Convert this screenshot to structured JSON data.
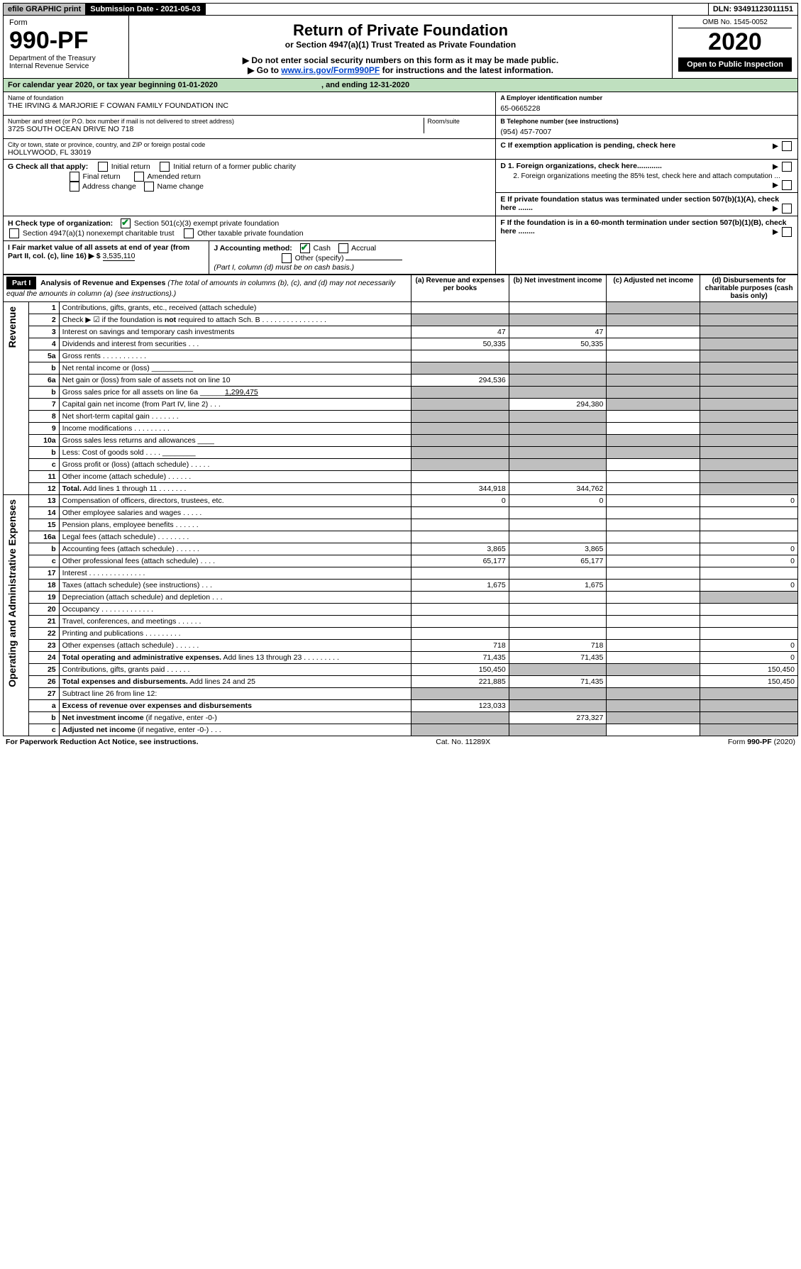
{
  "topbar": {
    "efile": "efile GRAPHIC print",
    "subdate_lbl": "Submission Date - 2021-05-03",
    "dln": "DLN: 93491123011151"
  },
  "header": {
    "form": "Form",
    "formnum": "990-PF",
    "dept": "Department of the Treasury",
    "irs": "Internal Revenue Service",
    "title": "Return of Private Foundation",
    "sub": "or Section 4947(a)(1) Trust Treated as Private Foundation",
    "note1": "▶ Do not enter social security numbers on this form as it may be made public.",
    "note2": "▶ Go to ",
    "link": "www.irs.gov/Form990PF",
    "note2b": " for instructions and the latest information.",
    "omb": "OMB No. 1545-0052",
    "year": "2020",
    "open": "Open to Public Inspection"
  },
  "cal": {
    "text": "For calendar year 2020, or tax year beginning 01-01-2020",
    "end": ", and ending 12-31-2020"
  },
  "info": {
    "name_lbl": "Name of foundation",
    "name": "THE IRVING & MARJORIE F COWAN FAMILY FOUNDATION INC",
    "addr_lbl": "Number and street (or P.O. box number if mail is not delivered to street address)",
    "addr": "3725 SOUTH OCEAN DRIVE NO 718",
    "room": "Room/suite",
    "city_lbl": "City or town, state or province, country, and ZIP or foreign postal code",
    "city": "HOLLYWOOD, FL  33019",
    "ein_lbl": "A Employer identification number",
    "ein": "65-0665228",
    "tel_lbl": "B Telephone number (see instructions)",
    "tel": "(954) 457-7007",
    "c": "C If exemption application is pending, check here",
    "d1": "D 1. Foreign organizations, check here............",
    "d2": "2. Foreign organizations meeting the 85% test, check here and attach computation ...",
    "e": "E  If private foundation status was terminated under section 507(b)(1)(A), check here .......",
    "f": "F  If the foundation is in a 60-month termination under section 507(b)(1)(B), check here ........",
    "g": "G Check all that apply:",
    "g1": "Initial return",
    "g2": "Initial return of a former public charity",
    "g3": "Final return",
    "g4": "Amended return",
    "g5": "Address change",
    "g6": "Name change",
    "h": "H Check type of organization:",
    "h1": "Section 501(c)(3) exempt private foundation",
    "h2": "Section 4947(a)(1) nonexempt charitable trust",
    "h3": "Other taxable private foundation",
    "i": "I Fair market value of all assets at end of year (from Part II, col. (c), line 16) ▶ $",
    "ival": "3,535,110",
    "j": "J Accounting method:",
    "j1": "Cash",
    "j2": "Accrual",
    "j3": "Other (specify)",
    "jnote": "(Part I, column (d) must be on cash basis.)"
  },
  "p1": {
    "title": "Part I",
    "heading": "Analysis of Revenue and Expenses",
    "note": " (The total of amounts in columns (b), (c), and (d) may not necessarily equal the amounts in column (a) (see instructions).)",
    "colA": "(a)   Revenue and expenses per books",
    "colB": "(b)  Net investment income",
    "colC": "(c)  Adjusted net income",
    "colD": "(d)  Disbursements for charitable purposes (cash basis only)",
    "rev": "Revenue",
    "exp": "Operating and Administrative Expenses"
  },
  "rows": [
    {
      "n": "1",
      "d": "Contributions, gifts, grants, etc., received (attach schedule)",
      "a": "",
      "b": "",
      "c": "s",
      "dd": "s"
    },
    {
      "n": "2",
      "d": "Check ▶ ☑ if the foundation is <b>not</b> required to attach Sch. B   .   .   .   .   .   .   .   .   .   .   .   .   .   .   .   .",
      "a": "s",
      "b": "s",
      "c": "s",
      "dd": "s"
    },
    {
      "n": "3",
      "d": "Interest on savings and temporary cash investments",
      "a": "47",
      "b": "47",
      "c": "",
      "dd": "s"
    },
    {
      "n": "4",
      "d": "Dividends and interest from securities   .   .   .",
      "a": "50,335",
      "b": "50,335",
      "c": "",
      "dd": "s"
    },
    {
      "n": "5a",
      "d": "Gross rents   .   .   .   .   .   .   .   .   .   .   .",
      "a": "",
      "b": "",
      "c": "",
      "dd": "s"
    },
    {
      "n": "b",
      "d": "Net rental income or (loss)  __________",
      "a": "s",
      "b": "s",
      "c": "s",
      "dd": "s"
    },
    {
      "n": "6a",
      "d": "Net gain or (loss) from sale of assets not on line 10",
      "a": "294,536",
      "b": "s",
      "c": "s",
      "dd": "s"
    },
    {
      "n": "b",
      "d": "Gross sales price for all assets on line 6a ______<u>1,299,475</u>",
      "a": "s",
      "b": "s",
      "c": "s",
      "dd": "s"
    },
    {
      "n": "7",
      "d": "Capital gain net income (from Part IV, line 2)   .   .   .",
      "a": "s",
      "b": "294,380",
      "c": "s",
      "dd": "s"
    },
    {
      "n": "8",
      "d": "Net short-term capital gain   .   .   .   .   .   .   .",
      "a": "s",
      "b": "s",
      "c": "",
      "dd": "s"
    },
    {
      "n": "9",
      "d": "Income modifications   .   .   .   .   .   .   .   .   .",
      "a": "s",
      "b": "s",
      "c": "",
      "dd": "s"
    },
    {
      "n": "10a",
      "d": "Gross sales less returns and allowances  ____",
      "a": "s",
      "b": "s",
      "c": "s",
      "dd": "s"
    },
    {
      "n": "b",
      "d": "Less: Cost of goods sold   .   .   .   .  ________",
      "a": "s",
      "b": "s",
      "c": "s",
      "dd": "s"
    },
    {
      "n": "c",
      "d": "Gross profit or (loss) (attach schedule)   .   .   .   .   .",
      "a": "s",
      "b": "s",
      "c": "",
      "dd": "s"
    },
    {
      "n": "11",
      "d": "Other income (attach schedule)   .   .   .   .   .   .",
      "a": "",
      "b": "",
      "c": "",
      "dd": "s"
    },
    {
      "n": "12",
      "d": "<b>Total.</b> Add lines 1 through 11   .   .   .   .   .   .   .",
      "a": "344,918",
      "b": "344,762",
      "c": "",
      "dd": "s"
    }
  ],
  "erows": [
    {
      "n": "13",
      "d": "Compensation of officers, directors, trustees, etc.",
      "a": "0",
      "b": "0",
      "c": "",
      "dd": "0"
    },
    {
      "n": "14",
      "d": "Other employee salaries and wages   .   .   .   .   .",
      "a": "",
      "b": "",
      "c": "",
      "dd": ""
    },
    {
      "n": "15",
      "d": "Pension plans, employee benefits   .   .   .   .   .   .",
      "a": "",
      "b": "",
      "c": "",
      "dd": ""
    },
    {
      "n": "16a",
      "d": "Legal fees (attach schedule)   .   .   .   .   .   .   .   .",
      "a": "",
      "b": "",
      "c": "",
      "dd": ""
    },
    {
      "n": "b",
      "d": "Accounting fees (attach schedule)   .   .   .   .   .   .",
      "a": "3,865",
      "b": "3,865",
      "c": "",
      "dd": "0"
    },
    {
      "n": "c",
      "d": "Other professional fees (attach schedule)   .   .   .   .",
      "a": "65,177",
      "b": "65,177",
      "c": "",
      "dd": "0"
    },
    {
      "n": "17",
      "d": "Interest   .   .   .   .   .   .   .   .   .   .   .   .   .   .",
      "a": "",
      "b": "",
      "c": "",
      "dd": ""
    },
    {
      "n": "18",
      "d": "Taxes (attach schedule) (see instructions)   .   .   .",
      "a": "1,675",
      "b": "1,675",
      "c": "",
      "dd": "0"
    },
    {
      "n": "19",
      "d": "Depreciation (attach schedule) and depletion   .   .   .",
      "a": "",
      "b": "",
      "c": "",
      "dd": "s"
    },
    {
      "n": "20",
      "d": "Occupancy   .   .   .   .   .   .   .   .   .   .   .   .   .",
      "a": "",
      "b": "",
      "c": "",
      "dd": ""
    },
    {
      "n": "21",
      "d": "Travel, conferences, and meetings   .   .   .   .   .   .",
      "a": "",
      "b": "",
      "c": "",
      "dd": ""
    },
    {
      "n": "22",
      "d": "Printing and publications   .   .   .   .   .   .   .   .   .",
      "a": "",
      "b": "",
      "c": "",
      "dd": ""
    },
    {
      "n": "23",
      "d": "Other expenses (attach schedule)   .   .   .   .   .   .",
      "a": "718",
      "b": "718",
      "c": "",
      "dd": "0"
    },
    {
      "n": "24",
      "d": "<b>Total operating and administrative expenses.</b> Add lines 13 through 23   .   .   .   .   .   .   .   .   .",
      "a": "71,435",
      "b": "71,435",
      "c": "",
      "dd": "0"
    },
    {
      "n": "25",
      "d": "Contributions, gifts, grants paid   .   .   .   .   .   .",
      "a": "150,450",
      "b": "s",
      "c": "s",
      "dd": "150,450"
    },
    {
      "n": "26",
      "d": "<b>Total expenses and disbursements.</b> Add lines 24 and 25",
      "a": "221,885",
      "b": "71,435",
      "c": "",
      "dd": "150,450"
    },
    {
      "n": "27",
      "d": "Subtract line 26 from line 12:",
      "a": "s",
      "b": "s",
      "c": "s",
      "dd": "s"
    },
    {
      "n": "a",
      "d": "<b>Excess of revenue over expenses and disbursements</b>",
      "a": "123,033",
      "b": "s",
      "c": "s",
      "dd": "s"
    },
    {
      "n": "b",
      "d": "<b>Net investment income</b> (if negative, enter -0-)",
      "a": "s",
      "b": "273,327",
      "c": "s",
      "dd": "s"
    },
    {
      "n": "c",
      "d": "<b>Adjusted net income</b> (if negative, enter -0-)   .   .   .",
      "a": "s",
      "b": "s",
      "c": "",
      "dd": "s"
    }
  ],
  "foot": {
    "left": "For Paperwork Reduction Act Notice, see instructions.",
    "mid": "Cat. No. 11289X",
    "right": "Form 990-PF (2020)"
  }
}
